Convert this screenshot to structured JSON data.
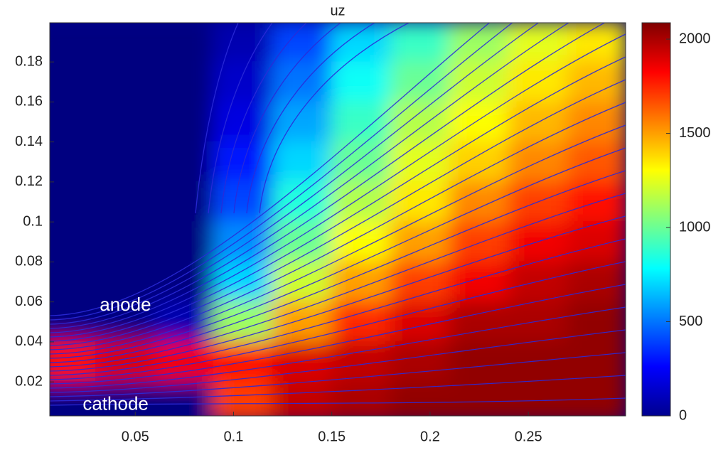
{
  "chart_data": {
    "type": "heatmap",
    "title": "uz",
    "x": [
      0.015,
      0.045,
      0.075,
      0.105,
      0.135,
      0.165,
      0.195,
      0.225,
      0.255,
      0.285
    ],
    "y": [
      0.19,
      0.17,
      0.15,
      0.13,
      0.11,
      0.09,
      0.07,
      0.05,
      0.03,
      0.01
    ],
    "z": [
      [
        0,
        0,
        0,
        100,
        400,
        700,
        900,
        1100,
        1250,
        1350
      ],
      [
        0,
        0,
        0,
        150,
        500,
        800,
        1000,
        1200,
        1350,
        1450
      ],
      [
        0,
        0,
        0,
        200,
        600,
        900,
        1150,
        1300,
        1450,
        1550
      ],
      [
        0,
        0,
        0,
        300,
        700,
        1000,
        1250,
        1400,
        1550,
        1650
      ],
      [
        0,
        0,
        0,
        400,
        850,
        1150,
        1350,
        1550,
        1700,
        1800
      ],
      [
        0,
        0,
        0,
        550,
        1000,
        1300,
        1500,
        1700,
        1850,
        1900
      ],
      [
        0,
        0,
        0,
        700,
        1200,
        1500,
        1700,
        1850,
        1950,
        2000
      ],
      [
        0,
        0,
        100,
        1100,
        1500,
        1750,
        1900,
        2000,
        2000,
        2050
      ],
      [
        1800,
        1900,
        1850,
        1800,
        1900,
        1950,
        2000,
        2050,
        2050,
        2050
      ],
      [
        0,
        0,
        0,
        1700,
        1950,
        2000,
        2050,
        2050,
        2050,
        2050
      ]
    ],
    "xlim": [
      0.0065,
      0.2995
    ],
    "xticks": [
      0.05,
      0.1,
      0.15,
      0.2,
      0.25
    ],
    "ylim": [
      0.003,
      0.1996
    ],
    "yticks": [
      0.02,
      0.04,
      0.06,
      0.08,
      0.1,
      0.12,
      0.14,
      0.16,
      0.18
    ],
    "clim": [
      0,
      2087
    ],
    "cticks": [
      0,
      500,
      1000,
      1500,
      2000
    ],
    "colormap": "jet",
    "annotations": [
      {
        "text": "anode",
        "x": 0.045,
        "y": 0.058
      },
      {
        "text": "cathode",
        "x": 0.04,
        "y": 0.0085
      }
    ]
  }
}
